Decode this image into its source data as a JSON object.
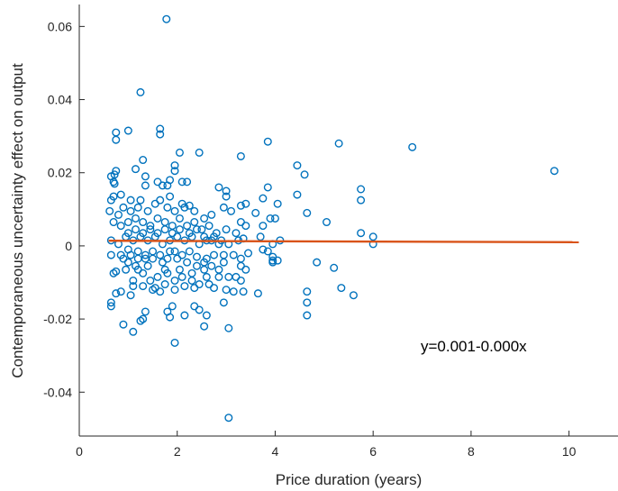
{
  "chart_data": {
    "type": "scatter",
    "xlabel": "Price duration (years)",
    "ylabel": "Contemporaneous uncertainty effect on output",
    "xlim": [
      0,
      11
    ],
    "ylim": [
      -0.052,
      0.066
    ],
    "xticks": [
      0,
      2,
      4,
      6,
      8,
      10
    ],
    "yticks": [
      -0.04,
      -0.02,
      0,
      0.02,
      0.04,
      0.06
    ],
    "xtick_labels": [
      "0",
      "2",
      "4",
      "6",
      "8",
      "10"
    ],
    "ytick_labels": [
      "-0.04",
      "-0.02",
      "0",
      "0.02",
      "0.04",
      "0.06"
    ],
    "grid": false,
    "annotation": "y=0.001-0.000x",
    "marker_color": "#0072BD",
    "line_color": "#D95319",
    "fit_line": {
      "x": [
        0.6,
        10.2
      ],
      "y": [
        0.0014,
        0.001
      ]
    },
    "points": [
      [
        1.78,
        0.062
      ],
      [
        1.25,
        0.042
      ],
      [
        0.75,
        0.031
      ],
      [
        0.75,
        0.029
      ],
      [
        1.0,
        0.0315
      ],
      [
        1.65,
        0.032
      ],
      [
        1.65,
        0.0305
      ],
      [
        0.65,
        0.019
      ],
      [
        0.75,
        0.0205
      ],
      [
        0.72,
        0.0195
      ],
      [
        0.7,
        0.0175
      ],
      [
        0.72,
        0.017
      ],
      [
        1.15,
        0.021
      ],
      [
        1.3,
        0.0235
      ],
      [
        1.35,
        0.019
      ],
      [
        1.35,
        0.0165
      ],
      [
        0.7,
        0.0135
      ],
      [
        0.85,
        0.014
      ],
      [
        0.65,
        0.0125
      ],
      [
        0.62,
        0.0095
      ],
      [
        1.05,
        0.0125
      ],
      [
        1.25,
        0.0125
      ],
      [
        1.6,
        0.0175
      ],
      [
        1.7,
        0.0165
      ],
      [
        1.8,
        0.0165
      ],
      [
        1.85,
        0.018
      ],
      [
        1.95,
        0.0205
      ],
      [
        1.95,
        0.022
      ],
      [
        1.85,
        0.0135
      ],
      [
        1.65,
        0.0125
      ],
      [
        2.1,
        0.0175
      ],
      [
        2.05,
        0.0255
      ],
      [
        2.45,
        0.0255
      ],
      [
        2.2,
        0.0175
      ],
      [
        2.25,
        0.011
      ],
      [
        2.1,
        0.0115
      ],
      [
        3.3,
        0.0245
      ],
      [
        2.85,
        0.016
      ],
      [
        3.0,
        0.015
      ],
      [
        3.0,
        0.0135
      ],
      [
        3.3,
        0.011
      ],
      [
        3.4,
        0.0115
      ],
      [
        3.75,
        0.013
      ],
      [
        3.85,
        0.016
      ],
      [
        3.85,
        0.0285
      ],
      [
        4.05,
        0.0115
      ],
      [
        4.45,
        0.022
      ],
      [
        4.6,
        0.0195
      ],
      [
        4.45,
        0.014
      ],
      [
        4.65,
        0.009
      ],
      [
        5.3,
        0.028
      ],
      [
        5.75,
        0.0155
      ],
      [
        5.75,
        0.0125
      ],
      [
        6.8,
        0.027
      ],
      [
        9.7,
        0.0205
      ],
      [
        5.05,
        0.0065
      ],
      [
        5.75,
        0.0035
      ],
      [
        6.0,
        0.0025
      ],
      [
        6.0,
        0.0005
      ],
      [
        4.1,
        0.0015
      ],
      [
        3.6,
        0.009
      ],
      [
        3.9,
        0.0075
      ],
      [
        4.0,
        0.0075
      ],
      [
        3.7,
        0.0025
      ],
      [
        3.75,
        0.0055
      ],
      [
        3.95,
        0.0005
      ],
      [
        3.95,
        -0.003
      ],
      [
        3.95,
        -0.0045
      ],
      [
        3.95,
        -0.004
      ],
      [
        4.05,
        -0.004
      ],
      [
        3.75,
        -0.001
      ],
      [
        3.85,
        -0.0015
      ],
      [
        4.85,
        -0.0045
      ],
      [
        5.2,
        -0.006
      ],
      [
        5.35,
        -0.0115
      ],
      [
        5.6,
        -0.0135
      ],
      [
        4.65,
        -0.0125
      ],
      [
        4.65,
        -0.0155
      ],
      [
        4.65,
        -0.019
      ],
      [
        3.65,
        -0.013
      ],
      [
        3.05,
        -0.0225
      ],
      [
        3.05,
        -0.047
      ],
      [
        2.95,
        -0.0155
      ],
      [
        2.6,
        -0.019
      ],
      [
        2.35,
        -0.0165
      ],
      [
        2.45,
        -0.0175
      ],
      [
        2.55,
        -0.022
      ],
      [
        1.95,
        -0.0265
      ],
      [
        2.15,
        -0.019
      ],
      [
        1.85,
        -0.0195
      ],
      [
        1.8,
        -0.018
      ],
      [
        1.9,
        -0.0165
      ],
      [
        1.35,
        -0.018
      ],
      [
        1.3,
        -0.02
      ],
      [
        1.25,
        -0.0205
      ],
      [
        1.1,
        -0.0235
      ],
      [
        0.9,
        -0.0215
      ],
      [
        0.65,
        -0.0155
      ],
      [
        0.65,
        -0.0165
      ],
      [
        0.75,
        -0.013
      ],
      [
        0.85,
        -0.0125
      ],
      [
        0.7,
        -0.0075
      ],
      [
        0.65,
        -0.0025
      ],
      [
        0.75,
        -0.007
      ],
      [
        1.05,
        -0.0135
      ],
      [
        1.1,
        -0.011
      ],
      [
        1.1,
        -0.0095
      ],
      [
        1.3,
        -0.011
      ],
      [
        1.5,
        -0.012
      ],
      [
        1.55,
        -0.0115
      ],
      [
        1.65,
        -0.0125
      ],
      [
        1.75,
        -0.0105
      ],
      [
        1.95,
        -0.012
      ],
      [
        2.15,
        -0.011
      ],
      [
        2.35,
        -0.0115
      ],
      [
        2.45,
        -0.0105
      ],
      [
        2.65,
        -0.0105
      ],
      [
        2.75,
        -0.0115
      ],
      [
        3.0,
        -0.012
      ],
      [
        3.15,
        -0.0125
      ],
      [
        3.35,
        -0.0125
      ],
      [
        3.2,
        -0.0085
      ],
      [
        3.3,
        -0.0055
      ],
      [
        3.4,
        -0.0065
      ],
      [
        3.3,
        -0.0095
      ],
      [
        2.85,
        -0.0065
      ],
      [
        2.95,
        -0.0045
      ],
      [
        3.05,
        -0.0085
      ],
      [
        2.55,
        -0.0065
      ],
      [
        2.3,
        -0.0075
      ],
      [
        2.1,
        -0.0085
      ],
      [
        1.95,
        -0.0095
      ],
      [
        1.8,
        -0.0075
      ],
      [
        1.6,
        -0.0085
      ],
      [
        1.45,
        -0.0095
      ],
      [
        1.3,
        -0.0075
      ],
      [
        1.15,
        -0.0055
      ],
      [
        1.0,
        -0.0045
      ],
      [
        0.95,
        -0.0065
      ],
      [
        0.85,
        -0.0025
      ],
      [
        1.0,
        -0.001
      ],
      [
        1.2,
        -0.0015
      ],
      [
        1.35,
        -0.0035
      ],
      [
        1.5,
        -0.0035
      ],
      [
        1.7,
        -0.0045
      ],
      [
        1.85,
        -0.0015
      ],
      [
        2.0,
        -0.0035
      ],
      [
        2.2,
        -0.0045
      ],
      [
        2.4,
        -0.003
      ],
      [
        2.6,
        -0.0035
      ],
      [
        2.75,
        -0.0025
      ],
      [
        2.95,
        -0.0025
      ],
      [
        3.15,
        -0.0025
      ],
      [
        3.3,
        -0.0035
      ],
      [
        3.45,
        -0.002
      ],
      [
        3.35,
        0.002
      ],
      [
        3.2,
        0.0035
      ],
      [
        3.0,
        0.0045
      ],
      [
        2.8,
        0.0035
      ],
      [
        2.65,
        0.0055
      ],
      [
        2.5,
        0.0045
      ],
      [
        2.35,
        0.0065
      ],
      [
        2.2,
        0.0055
      ],
      [
        2.05,
        0.0075
      ],
      [
        1.9,
        0.0055
      ],
      [
        1.75,
        0.0065
      ],
      [
        1.6,
        0.0075
      ],
      [
        1.45,
        0.0055
      ],
      [
        1.3,
        0.0065
      ],
      [
        1.15,
        0.0075
      ],
      [
        1.0,
        0.0065
      ],
      [
        0.85,
        0.0055
      ],
      [
        0.7,
        0.0065
      ],
      [
        0.65,
        0.0015
      ],
      [
        0.8,
        0.0005
      ],
      [
        0.95,
        0.0025
      ],
      [
        1.1,
        0.0015
      ],
      [
        1.25,
        0.0025
      ],
      [
        1.4,
        0.0015
      ],
      [
        1.55,
        0.0025
      ],
      [
        1.7,
        0.0005
      ],
      [
        1.85,
        0.0015
      ],
      [
        2.0,
        0.0025
      ],
      [
        2.15,
        0.0015
      ],
      [
        2.3,
        0.0025
      ],
      [
        2.45,
        0.0005
      ],
      [
        2.6,
        0.0015
      ],
      [
        2.75,
        0.0025
      ],
      [
        2.9,
        0.0015
      ],
      [
        3.05,
        0.0005
      ],
      [
        3.25,
        0.0015
      ],
      [
        3.4,
        0.0055
      ],
      [
        3.3,
        0.0065
      ],
      [
        3.1,
        0.0095
      ],
      [
        2.95,
        0.0105
      ],
      [
        2.7,
        0.0085
      ],
      [
        2.55,
        0.0075
      ],
      [
        2.35,
        0.0095
      ],
      [
        2.15,
        0.0105
      ],
      [
        1.95,
        0.0095
      ],
      [
        1.8,
        0.0105
      ],
      [
        1.55,
        0.0115
      ],
      [
        1.4,
        0.0095
      ],
      [
        1.2,
        0.0105
      ],
      [
        1.05,
        0.0095
      ],
      [
        0.9,
        0.0105
      ],
      [
        0.8,
        0.0085
      ],
      [
        1.0,
        0.0035
      ],
      [
        1.15,
        0.0045
      ],
      [
        1.3,
        0.0035
      ],
      [
        1.45,
        0.0045
      ],
      [
        1.6,
        0.0035
      ],
      [
        1.75,
        0.0045
      ],
      [
        1.9,
        0.0035
      ],
      [
        2.05,
        0.0045
      ],
      [
        2.25,
        0.0035
      ],
      [
        2.4,
        0.0045
      ],
      [
        2.55,
        0.0025
      ],
      [
        2.7,
        0.0015
      ],
      [
        2.85,
        0.0005
      ],
      [
        0.9,
        -0.0035
      ],
      [
        1.05,
        -0.0025
      ],
      [
        1.2,
        -0.0035
      ],
      [
        1.35,
        -0.0025
      ],
      [
        1.5,
        -0.0015
      ],
      [
        1.65,
        -0.0025
      ],
      [
        1.8,
        -0.0035
      ],
      [
        1.95,
        -0.0015
      ],
      [
        2.1,
        -0.0025
      ],
      [
        2.25,
        -0.0015
      ],
      [
        2.4,
        -0.0055
      ],
      [
        2.55,
        -0.0045
      ],
      [
        2.7,
        -0.0055
      ],
      [
        2.85,
        -0.0085
      ],
      [
        2.6,
        -0.0085
      ],
      [
        2.3,
        -0.0095
      ],
      [
        2.05,
        -0.0065
      ],
      [
        1.75,
        -0.0065
      ],
      [
        1.4,
        -0.0055
      ],
      [
        1.2,
        -0.0065
      ]
    ]
  }
}
